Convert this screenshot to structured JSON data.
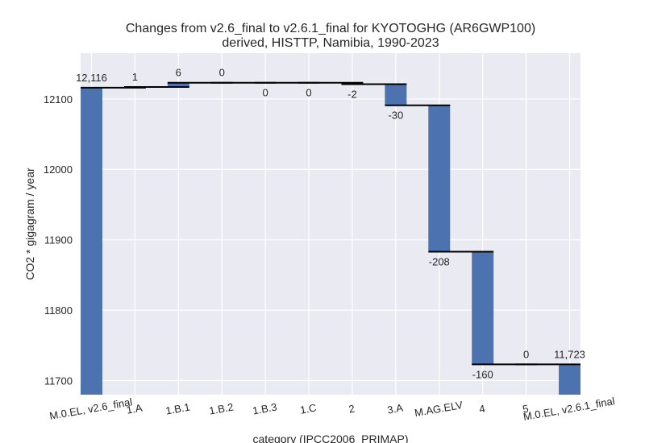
{
  "chart_data": {
    "type": "bar",
    "subtype": "waterfall",
    "title": "Changes from v2.6_final to v2.6.1_final for KYOTOGHG (AR6GWP100)",
    "subtitle": "derived, HISTTP, Namibia, 1990-2023",
    "xlabel": "category (IPCC2006_PRIMAP)",
    "ylabel": "CO2 * gigagram / year",
    "ylim": [
      11680,
      12165
    ],
    "yticks": [
      11700,
      11800,
      11900,
      12000,
      12100
    ],
    "grid": true,
    "colors": {
      "bar": "#4c72b0",
      "connector": "#000000",
      "plot_bg": "#eaeaf2",
      "grid": "#ffffff"
    },
    "categories": [
      "M.0.EL, v2.6_final",
      "1.A",
      "1.B.1",
      "1.B.2",
      "1.B.3",
      "1.C",
      "2",
      "3.A",
      "M.AG.ELV",
      "4",
      "5",
      "M.0.EL, v2.6.1_final"
    ],
    "steps": [
      {
        "kind": "total",
        "value": 12116,
        "label": "12,116"
      },
      {
        "kind": "delta",
        "value": 1,
        "label": "1"
      },
      {
        "kind": "delta",
        "value": 6,
        "label": "6"
      },
      {
        "kind": "delta",
        "value": 0,
        "label": "0"
      },
      {
        "kind": "delta",
        "value": 0,
        "label": "0"
      },
      {
        "kind": "delta",
        "value": 0,
        "label": "0"
      },
      {
        "kind": "delta",
        "value": -2,
        "label": "-2"
      },
      {
        "kind": "delta",
        "value": -30,
        "label": "-30"
      },
      {
        "kind": "delta",
        "value": -208,
        "label": "-208"
      },
      {
        "kind": "delta",
        "value": -160,
        "label": "-160"
      },
      {
        "kind": "delta",
        "value": 0,
        "label": "0"
      },
      {
        "kind": "total",
        "value": 11723,
        "label": "11,723"
      }
    ]
  }
}
